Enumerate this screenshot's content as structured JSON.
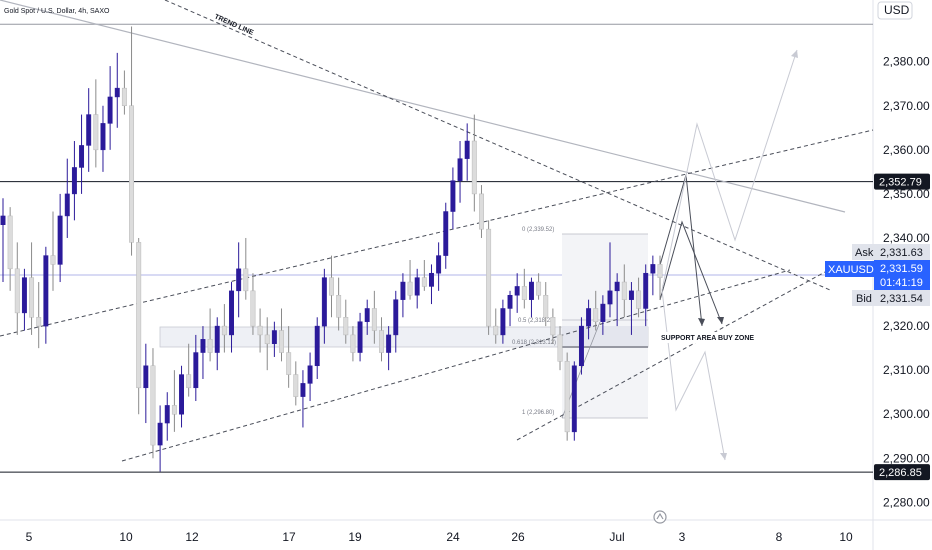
{
  "chart_data": {
    "type": "candlestick",
    "title": "Gold Spot / U.S. Dollar, 4h, SAXO",
    "currency_label": "USD",
    "ylim": [
      2276,
      2394
    ],
    "x_ticks": [
      "5",
      "10",
      "12",
      "17",
      "19",
      "24",
      "26",
      "Jul",
      "3",
      "8",
      "10"
    ],
    "y_ticks": [
      "2,380.00",
      "2,370.00",
      "2,360.00",
      "2,350.00",
      "2,340.00",
      "2,330.00",
      "2,320.00",
      "2,310.00",
      "2,300.00",
      "2,290.00",
      "2,280.00"
    ],
    "price_levels": {
      "resistance": {
        "value": 2352.79,
        "label": "2,352.79"
      },
      "support": {
        "value": 2286.85,
        "label": "2,286.85"
      },
      "top_line": 2388.5
    },
    "quote": {
      "symbol": "XAUUSD",
      "price": "2,331.59",
      "countdown": "01:41:19",
      "ask_label": "Ask",
      "ask": "2,331.63",
      "bid_label": "Bid",
      "bid": "2,331.54"
    },
    "fib_labels": [
      "0 (2,339.52)",
      "0.5 (2,318.23)",
      "0.618 (2,313.12)",
      "1 (2,296.80)"
    ],
    "annotations": {
      "trend_line": "TREND LINE",
      "support_zone": "SUPPORT AREA BUY ZONE"
    },
    "colors": {
      "bull": "#2b1a9a",
      "bear": "#dcdcdc",
      "wick": "#8a8a8a",
      "tag": "#131722",
      "quote_tag": "#2962ff",
      "ask_bid_tag": "#e0e3eb"
    },
    "candles": [
      [
        2343,
        2349,
        2330,
        2345
      ],
      [
        2345,
        2347,
        2328,
        2333
      ],
      [
        2333,
        2339,
        2318,
        2323
      ],
      [
        2323,
        2333,
        2319,
        2331
      ],
      [
        2331,
        2339,
        2318,
        2322
      ],
      [
        2322,
        2330,
        2315,
        2320
      ],
      [
        2320,
        2338,
        2316,
        2336
      ],
      [
        2336,
        2346,
        2328,
        2334
      ],
      [
        2334,
        2350,
        2330,
        2345
      ],
      [
        2345,
        2358,
        2340,
        2350
      ],
      [
        2350,
        2362,
        2344,
        2356
      ],
      [
        2356,
        2368,
        2350,
        2361
      ],
      [
        2361,
        2374,
        2355,
        2368
      ],
      [
        2368,
        2376,
        2356,
        2360
      ],
      [
        2360,
        2370,
        2355,
        2366
      ],
      [
        2366,
        2379,
        2360,
        2372
      ],
      [
        2372,
        2382,
        2365,
        2374
      ],
      [
        2374,
        2378,
        2368,
        2370
      ],
      [
        2370,
        2388,
        2336,
        2339
      ],
      [
        2339,
        2340,
        2300,
        2306
      ],
      [
        2306,
        2316,
        2298,
        2311
      ],
      [
        2311,
        2315,
        2290,
        2293
      ],
      [
        2293,
        2302,
        2287,
        2298
      ],
      [
        2298,
        2305,
        2294,
        2302
      ],
      [
        2302,
        2310,
        2296,
        2300
      ],
      [
        2300,
        2311,
        2297,
        2309
      ],
      [
        2309,
        2316,
        2304,
        2306
      ],
      [
        2306,
        2318,
        2303,
        2314
      ],
      [
        2314,
        2320,
        2308,
        2317
      ],
      [
        2317,
        2324,
        2312,
        2314
      ],
      [
        2314,
        2322,
        2310,
        2320
      ],
      [
        2320,
        2325,
        2314,
        2318
      ],
      [
        2318,
        2330,
        2314,
        2328
      ],
      [
        2328,
        2339,
        2322,
        2333
      ],
      [
        2333,
        2340,
        2326,
        2328
      ],
      [
        2328,
        2332,
        2318,
        2320
      ],
      [
        2320,
        2324,
        2314,
        2318
      ],
      [
        2318,
        2322,
        2310,
        2316
      ],
      [
        2316,
        2321,
        2313,
        2319
      ],
      [
        2319,
        2324,
        2312,
        2314
      ],
      [
        2314,
        2320,
        2306,
        2309
      ],
      [
        2309,
        2312,
        2302,
        2304
      ],
      [
        2304,
        2310,
        2297,
        2307
      ],
      [
        2307,
        2314,
        2303,
        2311
      ],
      [
        2311,
        2322,
        2308,
        2320
      ],
      [
        2320,
        2333,
        2316,
        2331
      ],
      [
        2331,
        2336,
        2322,
        2327
      ],
      [
        2327,
        2331,
        2319,
        2322
      ],
      [
        2322,
        2326,
        2316,
        2318
      ],
      [
        2318,
        2320,
        2312,
        2314
      ],
      [
        2314,
        2323,
        2312,
        2321
      ],
      [
        2321,
        2326,
        2318,
        2324
      ],
      [
        2324,
        2328,
        2316,
        2319
      ],
      [
        2319,
        2322,
        2312,
        2314
      ],
      [
        2314,
        2320,
        2310,
        2318
      ],
      [
        2318,
        2328,
        2314,
        2326
      ],
      [
        2326,
        2332,
        2322,
        2330
      ],
      [
        2330,
        2335,
        2326,
        2327
      ],
      [
        2327,
        2333,
        2324,
        2331
      ],
      [
        2331,
        2335,
        2328,
        2329
      ],
      [
        2329,
        2334,
        2325,
        2332
      ],
      [
        2332,
        2339,
        2328,
        2336
      ],
      [
        2336,
        2348,
        2333,
        2346
      ],
      [
        2346,
        2356,
        2342,
        2353
      ],
      [
        2353,
        2362,
        2348,
        2358
      ],
      [
        2358,
        2366,
        2353,
        2362
      ],
      [
        2362,
        2368,
        2346,
        2350
      ],
      [
        2350,
        2352,
        2340,
        2342
      ],
      [
        2342,
        2344,
        2318,
        2320
      ],
      [
        2320,
        2324,
        2316,
        2318
      ],
      [
        2318,
        2326,
        2316,
        2324
      ],
      [
        2324,
        2328,
        2320,
        2327
      ],
      [
        2327,
        2332,
        2323,
        2329
      ],
      [
        2329,
        2333,
        2324,
        2326
      ],
      [
        2326,
        2331,
        2322,
        2330
      ],
      [
        2330,
        2332,
        2326,
        2327
      ],
      [
        2327,
        2330,
        2320,
        2322
      ],
      [
        2322,
        2324,
        2316,
        2318
      ],
      [
        2318,
        2320,
        2310,
        2312
      ],
      [
        2312,
        2314,
        2294,
        2296
      ],
      [
        2296,
        2312,
        2294,
        2311
      ],
      [
        2311,
        2322,
        2309,
        2320
      ],
      [
        2320,
        2326,
        2317,
        2324
      ],
      [
        2324,
        2328,
        2319,
        2321
      ],
      [
        2321,
        2327,
        2318,
        2325
      ],
      [
        2325,
        2339,
        2322,
        2328
      ],
      [
        2328,
        2332,
        2320,
        2330
      ],
      [
        2330,
        2334,
        2322,
        2326
      ],
      [
        2326,
        2330,
        2318,
        2328
      ],
      [
        2328,
        2331,
        2322,
        2324
      ],
      [
        2324,
        2334,
        2320,
        2332
      ],
      [
        2332,
        2336,
        2327,
        2334
      ],
      [
        2334,
        2336,
        2326,
        2331
      ]
    ]
  }
}
